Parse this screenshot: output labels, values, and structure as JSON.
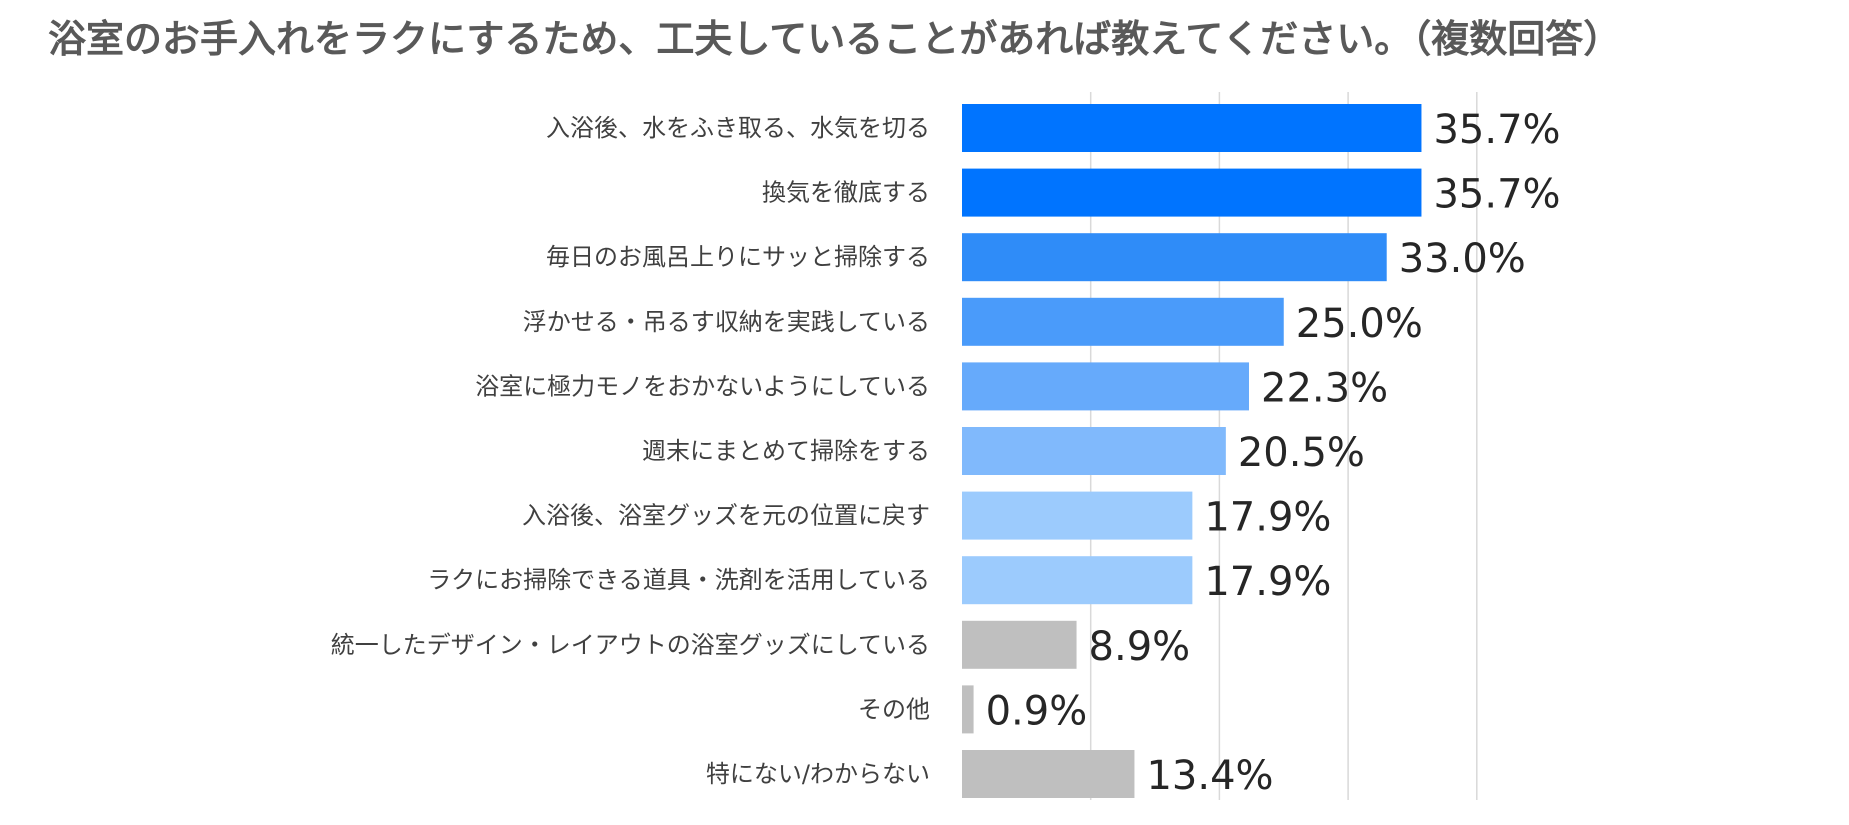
{
  "chart_data": {
    "type": "bar",
    "orientation": "horizontal",
    "title": "浴室のお手入れをラクにするため、工夫していることがあれば教えてください。（複数回答）",
    "xlim": [
      0,
      40
    ],
    "grid": true,
    "categories": [
      "入浴後、水をふき取る、水気を切る",
      "換気を徹底する",
      "毎日のお風呂上りにサッと掃除する",
      "浮かせる・吊るす収納を実践している",
      "浴室に極力モノをおかないようにしている",
      "週末にまとめて掃除をする",
      "入浴後、浴室グッズを元の位置に戻す",
      "ラクにお掃除できる道具・洗剤を活用している",
      "統一したデザイン・レイアウトの浴室グッズにしている",
      "その他",
      "特にない/わからない"
    ],
    "values": [
      35.7,
      35.7,
      33.0,
      25.0,
      22.3,
      20.5,
      17.9,
      17.9,
      8.9,
      0.9,
      13.4
    ],
    "value_labels": [
      "35.7%",
      "35.7%",
      "33.0%",
      "25.0%",
      "22.3%",
      "20.5%",
      "17.9%",
      "17.9%",
      "8.9%",
      "0.9%",
      "13.4%"
    ],
    "bar_colors": [
      "#0074ff",
      "#0074ff",
      "#2f8cf8",
      "#4a9bfa",
      "#66aafb",
      "#80b9fc",
      "#9ccbfd",
      "#9ccbfd",
      "#bfbfbf",
      "#bfbfbf",
      "#bfbfbf"
    ],
    "grid_color": "#d9d9d9"
  }
}
